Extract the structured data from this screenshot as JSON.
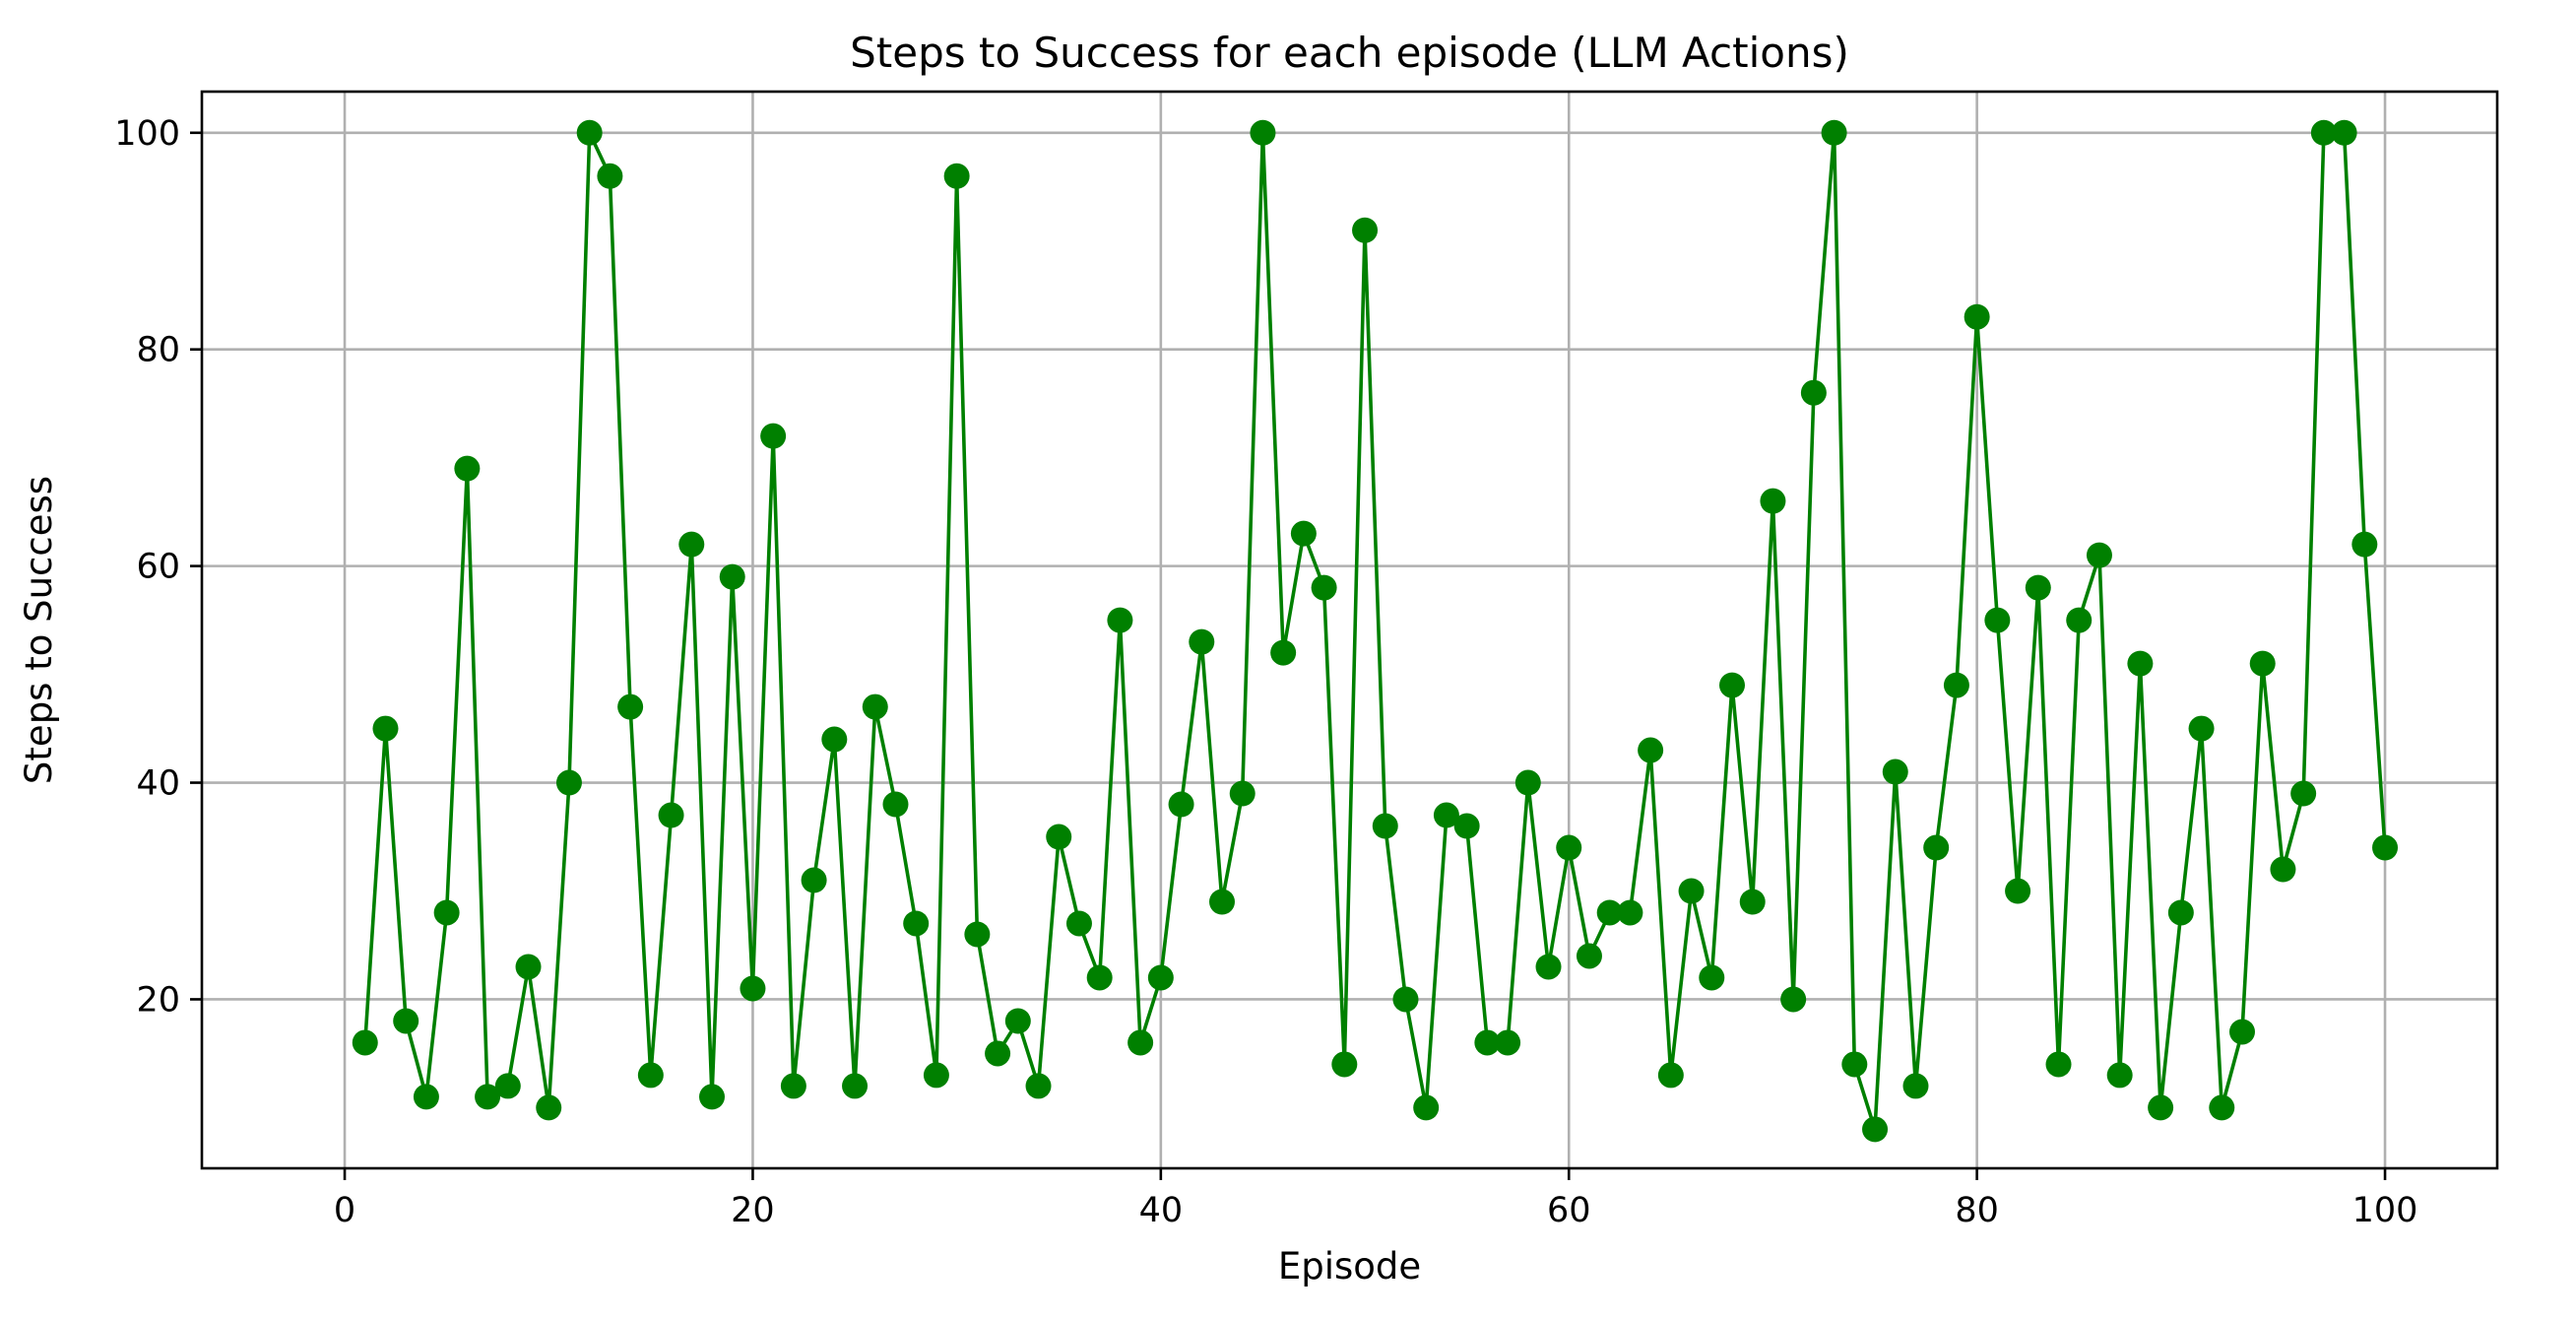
{
  "chart_data": {
    "type": "line",
    "title": "Steps to Success for each episode (LLM Actions)",
    "xlabel": "Episode",
    "ylabel": "Steps to Success",
    "xlim": [
      -7,
      105.5
    ],
    "ylim": [
      4.4,
      103.8
    ],
    "xticks": [
      0,
      20,
      40,
      60,
      80,
      100
    ],
    "yticks": [
      20,
      40,
      60,
      80,
      100
    ],
    "grid": true,
    "series": [
      {
        "color": "#008000",
        "marker": "circle",
        "x": [
          1,
          2,
          3,
          4,
          5,
          6,
          7,
          8,
          9,
          10,
          11,
          12,
          13,
          14,
          15,
          16,
          17,
          18,
          19,
          20,
          21,
          22,
          23,
          24,
          25,
          26,
          27,
          28,
          29,
          30,
          31,
          32,
          33,
          34,
          35,
          36,
          37,
          38,
          39,
          40,
          41,
          42,
          43,
          44,
          45,
          46,
          47,
          48,
          49,
          50,
          51,
          52,
          53,
          54,
          55,
          56,
          57,
          58,
          59,
          60,
          61,
          62,
          63,
          64,
          65,
          66,
          67,
          68,
          69,
          70,
          71,
          72,
          73,
          74,
          75,
          76,
          77,
          78,
          79,
          80,
          81,
          82,
          83,
          84,
          85,
          86,
          87,
          88,
          89,
          90,
          91,
          92,
          93,
          94,
          95,
          96,
          97,
          98,
          99,
          100
        ],
        "values": [
          16,
          45,
          18,
          11,
          28,
          69,
          11,
          12,
          23,
          10,
          40,
          100,
          96,
          47,
          13,
          37,
          62,
          11,
          59,
          21,
          72,
          12,
          31,
          44,
          12,
          47,
          38,
          27,
          13,
          96,
          26,
          15,
          18,
          12,
          35,
          27,
          22,
          55,
          16,
          22,
          38,
          53,
          29,
          39,
          100,
          52,
          63,
          58,
          14,
          91,
          36,
          20,
          10,
          37,
          36,
          16,
          16,
          40,
          23,
          34,
          24,
          28,
          28,
          43,
          13,
          30,
          22,
          49,
          29,
          66,
          20,
          76,
          100,
          14,
          8,
          41,
          12,
          34,
          49,
          83,
          55,
          30,
          58,
          14,
          55,
          61,
          13,
          51,
          10,
          28,
          45,
          10,
          17,
          51,
          32,
          39,
          100,
          100,
          62,
          34
        ]
      }
    ]
  }
}
